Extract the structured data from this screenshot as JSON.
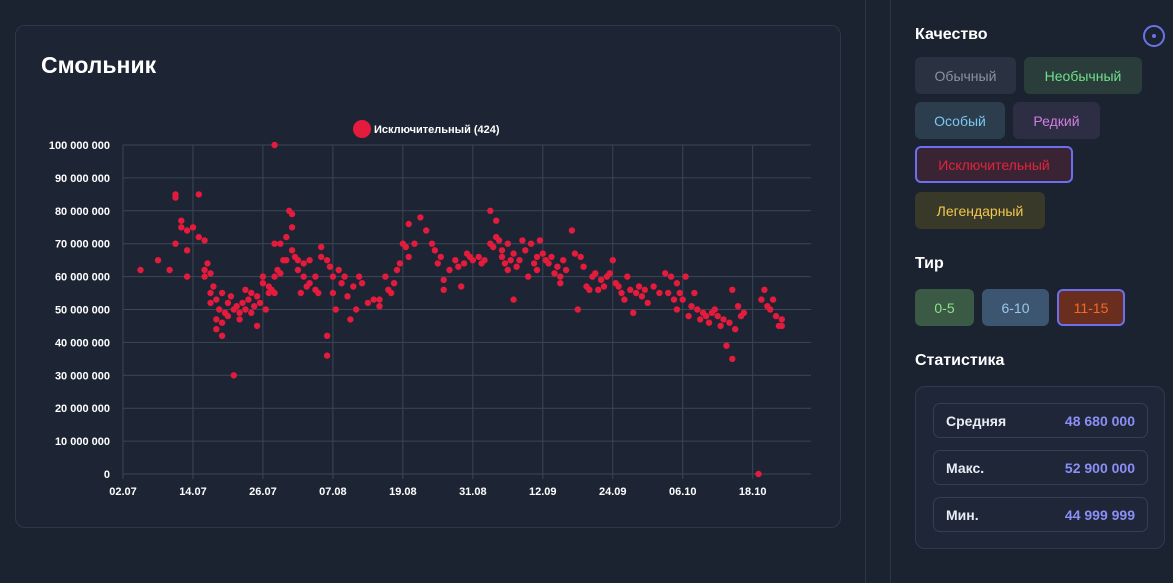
{
  "chart_card": {
    "title": "Смольник"
  },
  "chart_data": {
    "type": "scatter",
    "title": "Смольник",
    "legend": "Исключительный (424)",
    "legend_position": "top-center",
    "series_color": "#e31b3d",
    "grid": true,
    "ylim": [
      0,
      100000000
    ],
    "y_ticks": [
      "0",
      "10 000 000",
      "20 000 000",
      "30 000 000",
      "40 000 000",
      "50 000 000",
      "60 000 000",
      "70 000 000",
      "80 000 000",
      "90 000 000",
      "100 000 000"
    ],
    "x_ticks": [
      "02.07",
      "14.07",
      "26.07",
      "07.08",
      "19.08",
      "31.08",
      "12.09",
      "24.09",
      "06.10",
      "18.10"
    ],
    "x_range_days": [
      0,
      118
    ],
    "points": [
      [
        3,
        62000000
      ],
      [
        6,
        65000000
      ],
      [
        8,
        62000000
      ],
      [
        9,
        85000000
      ],
      [
        9,
        84000000
      ],
      [
        9,
        70000000
      ],
      [
        10,
        77000000
      ],
      [
        10,
        75000000
      ],
      [
        11,
        74000000
      ],
      [
        11,
        68000000
      ],
      [
        11,
        60000000
      ],
      [
        12,
        75000000
      ],
      [
        13,
        85000000
      ],
      [
        13,
        72000000
      ],
      [
        14,
        71000000
      ],
      [
        14,
        62000000
      ],
      [
        14,
        60000000
      ],
      [
        14.5,
        64000000
      ],
      [
        15,
        61000000
      ],
      [
        15,
        55000000
      ],
      [
        15,
        52000000
      ],
      [
        15.5,
        57000000
      ],
      [
        16,
        47000000
      ],
      [
        16,
        44000000
      ],
      [
        16,
        53000000
      ],
      [
        16.5,
        50000000
      ],
      [
        17,
        46000000
      ],
      [
        17,
        42000000
      ],
      [
        17,
        55000000
      ],
      [
        17.5,
        49000000
      ],
      [
        18,
        52000000
      ],
      [
        18,
        48000000
      ],
      [
        18.5,
        54000000
      ],
      [
        19,
        50000000
      ],
      [
        19,
        30000000
      ],
      [
        19.5,
        51000000
      ],
      [
        20,
        49000000
      ],
      [
        20,
        47000000
      ],
      [
        20.5,
        52000000
      ],
      [
        21,
        50000000
      ],
      [
        21,
        56000000
      ],
      [
        21.5,
        53000000
      ],
      [
        22,
        55000000
      ],
      [
        22,
        49000000
      ],
      [
        22.5,
        51000000
      ],
      [
        23,
        54000000
      ],
      [
        23,
        45000000
      ],
      [
        23.5,
        52000000
      ],
      [
        24,
        58000000
      ],
      [
        24,
        60000000
      ],
      [
        24.5,
        50000000
      ],
      [
        25,
        55000000
      ],
      [
        25,
        57000000
      ],
      [
        25.5,
        56000000
      ],
      [
        26,
        100000000
      ],
      [
        26,
        70000000
      ],
      [
        26,
        60000000
      ],
      [
        26,
        55000000
      ],
      [
        26.5,
        62000000
      ],
      [
        27,
        70000000
      ],
      [
        27,
        61000000
      ],
      [
        27.5,
        65000000
      ],
      [
        28,
        65000000
      ],
      [
        28,
        72000000
      ],
      [
        28.5,
        80000000
      ],
      [
        29,
        79000000
      ],
      [
        29,
        68000000
      ],
      [
        29,
        75000000
      ],
      [
        29.5,
        66000000
      ],
      [
        30,
        65000000
      ],
      [
        30,
        62000000
      ],
      [
        30.5,
        55000000
      ],
      [
        31,
        60000000
      ],
      [
        31,
        64000000
      ],
      [
        31.5,
        57000000
      ],
      [
        32,
        58000000
      ],
      [
        32,
        65000000
      ],
      [
        33,
        56000000
      ],
      [
        33,
        60000000
      ],
      [
        33.5,
        55000000
      ],
      [
        34,
        69000000
      ],
      [
        34,
        66000000
      ],
      [
        35,
        65000000
      ],
      [
        35,
        42000000
      ],
      [
        35,
        36000000
      ],
      [
        35.5,
        63000000
      ],
      [
        36,
        60000000
      ],
      [
        36,
        55000000
      ],
      [
        36.5,
        50000000
      ],
      [
        37,
        62000000
      ],
      [
        37.5,
        58000000
      ],
      [
        38,
        60000000
      ],
      [
        38.5,
        54000000
      ],
      [
        39,
        47000000
      ],
      [
        39.5,
        57000000
      ],
      [
        40,
        50000000
      ],
      [
        40.5,
        60000000
      ],
      [
        41,
        58000000
      ],
      [
        42,
        52000000
      ],
      [
        43,
        53000000
      ],
      [
        44,
        53000000
      ],
      [
        44,
        51000000
      ],
      [
        45,
        60000000
      ],
      [
        45.5,
        56000000
      ],
      [
        46,
        55000000
      ],
      [
        46.5,
        58000000
      ],
      [
        47,
        62000000
      ],
      [
        47.5,
        64000000
      ],
      [
        48,
        70000000
      ],
      [
        48.5,
        69000000
      ],
      [
        49,
        76000000
      ],
      [
        49,
        66000000
      ],
      [
        50,
        70000000
      ],
      [
        51,
        78000000
      ],
      [
        52,
        74000000
      ],
      [
        53,
        70000000
      ],
      [
        53.5,
        68000000
      ],
      [
        54,
        64000000
      ],
      [
        54.5,
        66000000
      ],
      [
        55,
        59000000
      ],
      [
        55,
        56000000
      ],
      [
        56,
        62000000
      ],
      [
        57,
        65000000
      ],
      [
        57.5,
        63000000
      ],
      [
        58,
        57000000
      ],
      [
        58.5,
        64000000
      ],
      [
        59,
        67000000
      ],
      [
        59.5,
        66000000
      ],
      [
        60,
        65000000
      ],
      [
        61,
        66000000
      ],
      [
        61.5,
        64000000
      ],
      [
        62,
        65000000
      ],
      [
        63,
        80000000
      ],
      [
        63,
        70000000
      ],
      [
        63.5,
        69000000
      ],
      [
        64,
        72000000
      ],
      [
        64,
        77000000
      ],
      [
        64.5,
        71000000
      ],
      [
        65,
        68000000
      ],
      [
        65,
        66000000
      ],
      [
        65.5,
        64000000
      ],
      [
        66,
        70000000
      ],
      [
        66,
        62000000
      ],
      [
        66.5,
        65000000
      ],
      [
        67,
        67000000
      ],
      [
        67,
        53000000
      ],
      [
        67.5,
        63000000
      ],
      [
        68,
        65000000
      ],
      [
        68.5,
        71000000
      ],
      [
        69,
        68000000
      ],
      [
        69.5,
        60000000
      ],
      [
        70,
        70000000
      ],
      [
        70.5,
        64000000
      ],
      [
        71,
        66000000
      ],
      [
        71,
        62000000
      ],
      [
        71.5,
        71000000
      ],
      [
        72,
        67000000
      ],
      [
        72.5,
        65000000
      ],
      [
        73,
        64000000
      ],
      [
        73.5,
        66000000
      ],
      [
        74,
        61000000
      ],
      [
        74.5,
        63000000
      ],
      [
        75,
        58000000
      ],
      [
        75,
        60000000
      ],
      [
        75.5,
        65000000
      ],
      [
        76,
        62000000
      ],
      [
        77,
        74000000
      ],
      [
        77.5,
        67000000
      ],
      [
        78,
        50000000
      ],
      [
        78.5,
        66000000
      ],
      [
        79,
        63000000
      ],
      [
        79.5,
        57000000
      ],
      [
        80,
        56000000
      ],
      [
        80.5,
        60000000
      ],
      [
        81,
        61000000
      ],
      [
        81.5,
        56000000
      ],
      [
        82,
        59000000
      ],
      [
        82.5,
        57000000
      ],
      [
        83,
        60000000
      ],
      [
        83.5,
        61000000
      ],
      [
        84,
        65000000
      ],
      [
        84.5,
        58000000
      ],
      [
        85,
        57000000
      ],
      [
        85.5,
        55000000
      ],
      [
        86,
        53000000
      ],
      [
        86.5,
        60000000
      ],
      [
        87,
        56000000
      ],
      [
        87.5,
        49000000
      ],
      [
        88,
        55000000
      ],
      [
        88.5,
        57000000
      ],
      [
        89,
        54000000
      ],
      [
        89.5,
        56000000
      ],
      [
        90,
        52000000
      ],
      [
        91,
        57000000
      ],
      [
        92,
        55000000
      ],
      [
        93,
        61000000
      ],
      [
        93.5,
        55000000
      ],
      [
        94,
        60000000
      ],
      [
        94.5,
        53000000
      ],
      [
        95,
        58000000
      ],
      [
        95,
        50000000
      ],
      [
        95.5,
        55000000
      ],
      [
        96,
        53000000
      ],
      [
        96.5,
        60000000
      ],
      [
        97,
        48000000
      ],
      [
        97.5,
        51000000
      ],
      [
        98,
        55000000
      ],
      [
        98.5,
        50000000
      ],
      [
        99,
        47000000
      ],
      [
        99.5,
        49000000
      ],
      [
        100,
        48000000
      ],
      [
        100.5,
        46000000
      ],
      [
        101,
        49000000
      ],
      [
        101.5,
        50000000
      ],
      [
        102,
        48000000
      ],
      [
        102.5,
        45000000
      ],
      [
        103,
        47000000
      ],
      [
        103.5,
        39000000
      ],
      [
        104,
        46000000
      ],
      [
        104.5,
        35000000
      ],
      [
        104.5,
        56000000
      ],
      [
        105,
        44000000
      ],
      [
        105.5,
        51000000
      ],
      [
        106,
        48000000
      ],
      [
        106.5,
        49000000
      ],
      [
        109,
        0
      ],
      [
        109.5,
        53000000
      ],
      [
        110,
        56000000
      ],
      [
        110.5,
        51000000
      ],
      [
        111,
        50000000
      ],
      [
        111.5,
        53000000
      ],
      [
        112,
        48000000
      ],
      [
        112.5,
        45000000
      ],
      [
        113,
        47000000
      ],
      [
        113,
        45000000
      ]
    ]
  },
  "sidebar": {
    "quality_title": "Качество",
    "info_icon": "info-circle-icon",
    "quality_chips": [
      {
        "label": "Обычный",
        "bg": "#2a3141",
        "fg": "#8b93a3"
      },
      {
        "label": "Необычный",
        "bg": "#2a3d3a",
        "fg": "#6fe08a"
      },
      {
        "label": "Особый",
        "bg": "#2c3d4e",
        "fg": "#7cc7f0"
      },
      {
        "label": "Редкий",
        "bg": "#2d2d44",
        "fg": "#d07fe0"
      },
      {
        "label": "Исключительный",
        "bg": "#3a2434",
        "fg": "#e2233f",
        "selected": true
      },
      {
        "label": "Легендарный",
        "bg": "#39392a",
        "fg": "#f2c94c"
      }
    ],
    "tier_title": "Тир",
    "tier_chips": [
      {
        "label": "0-5",
        "bg": "#3a5a45",
        "fg": "#8de08a"
      },
      {
        "label": "6-10",
        "bg": "#3c5570",
        "fg": "#9cc6e8"
      },
      {
        "label": "11-15",
        "bg": "#6a2e1e",
        "fg": "#f06a2a",
        "selected": true
      }
    ],
    "stats_title": "Статистика",
    "stats": [
      {
        "label": "Средняя",
        "value": "48 680 000"
      },
      {
        "label": "Макс.",
        "value": "52 900 000"
      },
      {
        "label": "Мин.",
        "value": "44 999 999"
      }
    ]
  }
}
